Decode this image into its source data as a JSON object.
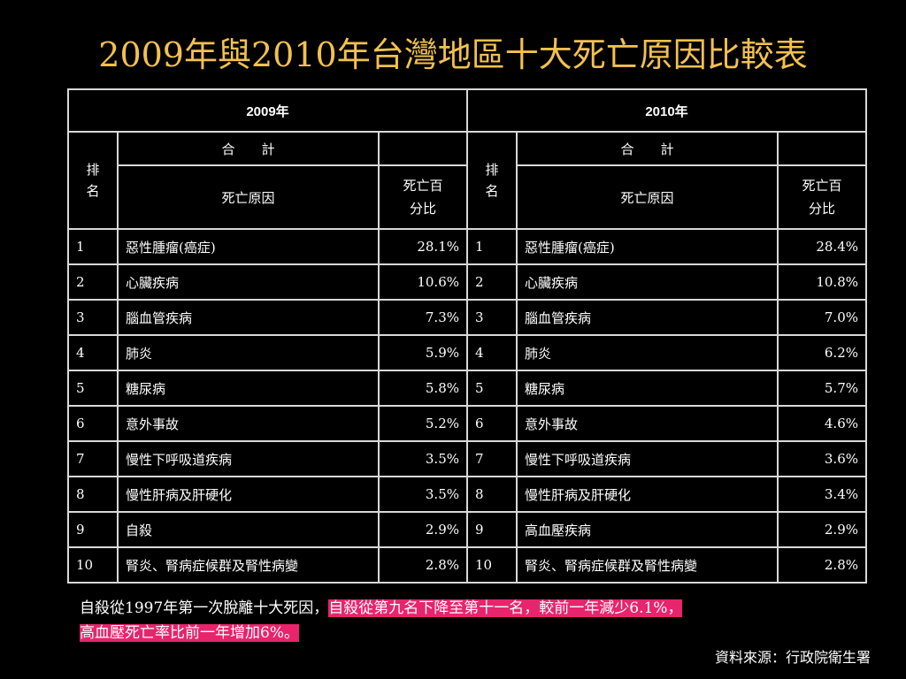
{
  "title": "2009年與2010年台灣地區十大死亡原因比較表",
  "colors": {
    "background": "#000000",
    "title": "#f2c14e",
    "highlight": "#e8246c",
    "text": "#ffffff"
  },
  "table": {
    "years": [
      "2009年",
      "2010年"
    ],
    "rank_label": "排名",
    "total_label": "合　　計",
    "cause_label": "死亡原因",
    "pct_label": "死亡百分比",
    "rows_2009": [
      {
        "rank": "1",
        "cause": "惡性腫瘤(癌症)",
        "pct": "28.1%"
      },
      {
        "rank": "2",
        "cause": "心臟疾病",
        "pct": "10.6%"
      },
      {
        "rank": "3",
        "cause": "腦血管疾病",
        "pct": "7.3%"
      },
      {
        "rank": "4",
        "cause": "肺炎",
        "pct": "5.9%"
      },
      {
        "rank": "5",
        "cause": "糖尿病",
        "pct": "5.8%"
      },
      {
        "rank": "6",
        "cause": "意外事故",
        "pct": "5.2%"
      },
      {
        "rank": "7",
        "cause": "慢性下呼吸道疾病",
        "pct": "3.5%"
      },
      {
        "rank": "8",
        "cause": "慢性肝病及肝硬化",
        "pct": "3.5%"
      },
      {
        "rank": "9",
        "cause": "自殺",
        "pct": "2.9%"
      },
      {
        "rank": "10",
        "cause": "腎炎、腎病症候群及腎性病變",
        "pct": "2.8%"
      }
    ],
    "rows_2010": [
      {
        "rank": "1",
        "cause": "惡性腫瘤(癌症)",
        "pct": "28.4%"
      },
      {
        "rank": "2",
        "cause": "心臟疾病",
        "pct": "10.8%"
      },
      {
        "rank": "3",
        "cause": "腦血管疾病",
        "pct": "7.0%"
      },
      {
        "rank": "4",
        "cause": "肺炎",
        "pct": "6.2%"
      },
      {
        "rank": "5",
        "cause": "糖尿病",
        "pct": "5.7%"
      },
      {
        "rank": "6",
        "cause": "意外事故",
        "pct": "4.6%"
      },
      {
        "rank": "7",
        "cause": "慢性下呼吸道疾病",
        "pct": "3.6%"
      },
      {
        "rank": "8",
        "cause": "慢性肝病及肝硬化",
        "pct": "3.4%"
      },
      {
        "rank": "9",
        "cause": "高血壓疾病",
        "pct": "2.9%"
      },
      {
        "rank": "10",
        "cause": "腎炎、腎病症候群及腎性病變",
        "pct": "2.8%"
      }
    ]
  },
  "note": {
    "plain": "自殺從1997年第一次脫離十大死因，",
    "highlight1": "自殺從第九名下降至第十一名，較前一年減少6.1%，",
    "highlight2": "高血壓死亡率比前一年增加6%。"
  },
  "source": "資料來源：行政院衛生署"
}
